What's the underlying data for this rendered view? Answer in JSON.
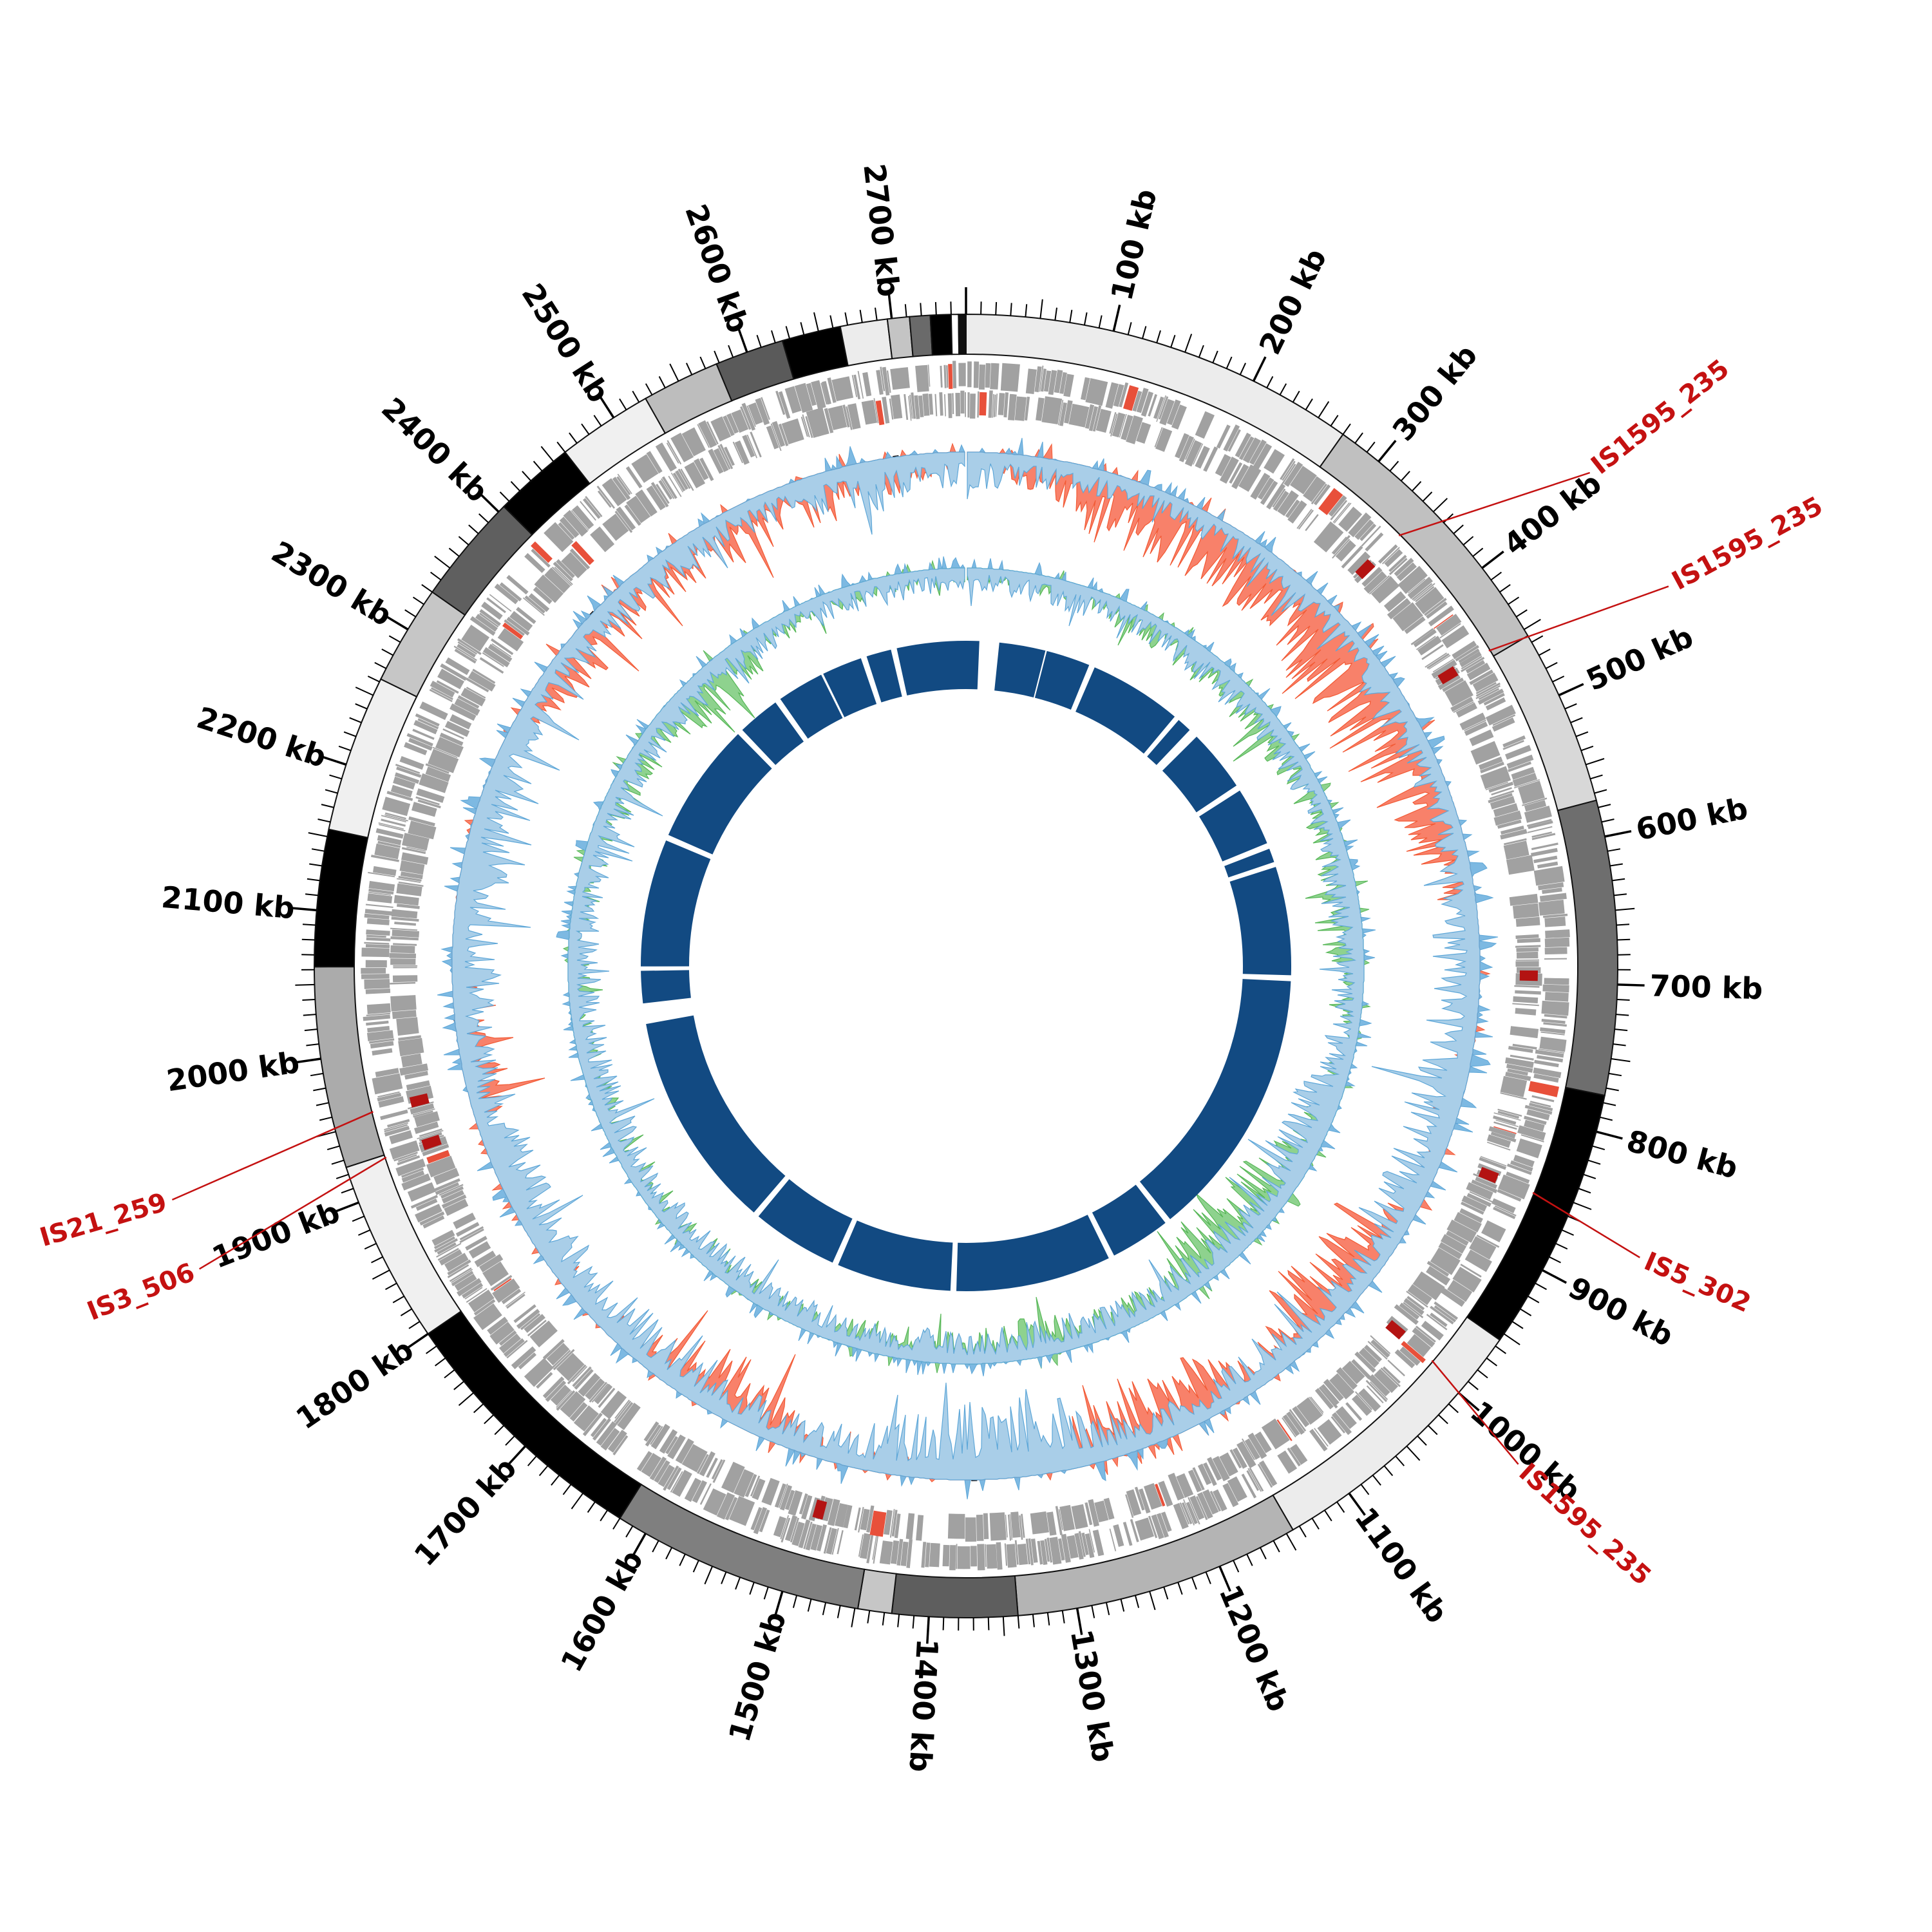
{
  "chart_data": {
    "type": "circular-genome-map",
    "unit": "kb",
    "total_kb": 2750,
    "axis": {
      "minor_tick_kb": 10,
      "mid_tick_kb": 50,
      "major_tick_kb": 100,
      "labels": [
        "100 kb",
        "200 kb",
        "300 kb",
        "400 kb",
        "500 kb",
        "600 kb",
        "700 kb",
        "800 kb",
        "900 kb",
        "1000 kb",
        "1100 kb",
        "1200 kb",
        "1300 kb",
        "1400 kb",
        "1500 kb",
        "1600 kb",
        "1700 kb",
        "1800 kb",
        "1900 kb",
        "2000 kb",
        "2100 kb",
        "2200 kb",
        "2300 kb",
        "2400 kb",
        "2500 kb",
        "2600 kb",
        "2700 kb"
      ]
    },
    "contigs": [
      [
        0,
        270,
        "#ececec"
      ],
      [
        270,
        455,
        "#c0c0c0"
      ],
      [
        455,
        575,
        "#d8d8d8"
      ],
      [
        575,
        775,
        "#6e6e6e"
      ],
      [
        775,
        955,
        "#000000"
      ],
      [
        955,
        1145,
        "#ececec"
      ],
      [
        1145,
        1340,
        "#b4b4b4"
      ],
      [
        1340,
        1425,
        "#5e5e5e"
      ],
      [
        1425,
        1448,
        "#c6c6c6"
      ],
      [
        1448,
        1620,
        "#7f7f7f"
      ],
      [
        1620,
        1800,
        "#000000"
      ],
      [
        1800,
        1925,
        "#f0f0f0"
      ],
      [
        1925,
        2062,
        "#ababab"
      ],
      [
        2062,
        2155,
        "#000000"
      ],
      [
        2155,
        2262,
        "#f0f0f0"
      ],
      [
        2262,
        2330,
        "#c6c6c6"
      ],
      [
        2330,
        2405,
        "#5f5f5f"
      ],
      [
        2405,
        2460,
        "#000000"
      ],
      [
        2460,
        2525,
        "#f0f0f0"
      ],
      [
        2525,
        2578,
        "#bdbdbd"
      ],
      [
        2578,
        2625,
        "#5a5a5a"
      ],
      [
        2625,
        2665,
        "#000000"
      ],
      [
        2665,
        2697,
        "#ececec"
      ],
      [
        2697,
        2712,
        "#c4c4c4"
      ],
      [
        2712,
        2726,
        "#6a6a6a"
      ],
      [
        2726,
        2740,
        "#000000"
      ],
      [
        2740,
        2745,
        "#ffffff"
      ],
      [
        2745,
        2750,
        "#111111"
      ]
    ],
    "is_elements": [
      {
        "label": "IS1595_235",
        "kb": 345,
        "label_offset_deg": 6.5,
        "label_r": 1245
      },
      {
        "label": "IS1595_235",
        "kb": 450,
        "label_offset_deg": 2.7,
        "label_r": 1250
      },
      {
        "label": "IS5_302",
        "kb": 854,
        "label_offset_deg": 1.6,
        "label_r": 1150
      },
      {
        "label": "IS1595_235",
        "kb": 995,
        "label_offset_deg": 1.8,
        "label_r": 1165
      },
      {
        "label": "IS3_506",
        "kb": 1923,
        "label_offset_deg": -3.3,
        "label_r": 1290
      },
      {
        "label": "IS21_259",
        "kb": 1957,
        "label_offset_deg": -2.6,
        "label_r": 1295
      }
    ],
    "is_site_marks_kb": [
      345,
      450,
      695,
      854,
      995,
      1490,
      1923,
      1957
    ],
    "black_marks_kb": [
      66,
      1368,
      2018,
      2393,
      2690
    ],
    "alignment_segments": [
      [
        0,
        18
      ],
      [
        45,
        108
      ],
      [
        110,
        170
      ],
      [
        178,
        305
      ],
      [
        312,
        332
      ],
      [
        345,
        430
      ],
      [
        438,
        518
      ],
      [
        526,
        545
      ],
      [
        552,
        700
      ],
      [
        708,
        1078
      ],
      [
        1086,
        1168
      ],
      [
        1176,
        1388
      ],
      [
        1396,
        1552
      ],
      [
        1560,
        1678
      ],
      [
        1686,
        1984
      ],
      [
        2012,
        2056
      ],
      [
        2062,
        2236
      ],
      [
        2244,
        2410
      ],
      [
        2418,
        2476
      ],
      [
        2484,
        2548
      ],
      [
        2551,
        2606
      ],
      [
        2614,
        2648
      ],
      [
        2656,
        2750
      ]
    ],
    "tracks": {
      "gc_content": {
        "orange_envelope": [
          0.15,
          0.3,
          0.75,
          0.75,
          0.7,
          0.75,
          0.8,
          0.9,
          0.95,
          0.95,
          0.85,
          0.8,
          0.5,
          0.15,
          0.15,
          0.15,
          0.2,
          0.2,
          0.25,
          0.7,
          0.8,
          0.8,
          0.3,
          0.7,
          0.8,
          0.6,
          0.2,
          0.15,
          0.15,
          0.2,
          0.2,
          0.6,
          0.7,
          0.6,
          0.2,
          0.15,
          0.15,
          0.2,
          0.2,
          0.5,
          0.4,
          0.15,
          0.15,
          0.15,
          0.2,
          0.2,
          0.3,
          0.6,
          0.4,
          0.5,
          0.6,
          0.6,
          0.55,
          0.5,
          0.4
        ],
        "blue_envelope": [
          0.45,
          0.4,
          0.3,
          0.25,
          0.25,
          0.3,
          0.3,
          0.3,
          0.35,
          0.4,
          0.35,
          0.3,
          0.35,
          0.5,
          0.5,
          0.55,
          0.6,
          0.55,
          0.5,
          0.35,
          0.4,
          0.4,
          0.5,
          0.35,
          0.35,
          0.5,
          1.0,
          0.95,
          0.8,
          0.5,
          0.5,
          0.4,
          0.4,
          0.4,
          0.5,
          0.5,
          0.45,
          0.5,
          0.5,
          0.35,
          0.4,
          0.5,
          0.55,
          0.5,
          0.45,
          0.45,
          0.4,
          0.3,
          0.4,
          0.4,
          0.35,
          0.3,
          0.4,
          0.6,
          0.5
        ]
      },
      "gc_skew": {
        "green_envelope": [
          0.2,
          0.25,
          0.3,
          0.3,
          0.35,
          0.45,
          0.5,
          0.5,
          0.5,
          0.45,
          0.45,
          0.4,
          0.7,
          0.8,
          0.3,
          0.25,
          0.3,
          0.4,
          0.6,
          0.8,
          0.9,
          1.0,
          0.8,
          0.5,
          0.4,
          0.5,
          0.6,
          0.5,
          0.45,
          0.5,
          0.4,
          0.3,
          0.3,
          0.35,
          0.3,
          0.25,
          0.25,
          0.3,
          0.35,
          0.35,
          0.3,
          0.3,
          0.25,
          0.25,
          0.3,
          0.4,
          0.5,
          0.5,
          0.7,
          0.8,
          0.5,
          0.3,
          0.3,
          0.25,
          0.25
        ],
        "blue_envelope": [
          0.35,
          0.35,
          0.4,
          0.4,
          0.4,
          0.4,
          0.45,
          0.45,
          0.4,
          0.4,
          0.4,
          0.45,
          0.5,
          0.5,
          0.45,
          0.4,
          0.5,
          0.7,
          0.75,
          0.6,
          0.5,
          0.5,
          0.5,
          0.45,
          0.45,
          0.5,
          0.5,
          0.5,
          0.45,
          0.5,
          0.45,
          0.45,
          0.4,
          0.45,
          0.45,
          0.4,
          0.4,
          0.45,
          0.5,
          0.45,
          0.4,
          0.45,
          0.4,
          0.4,
          0.45,
          0.45,
          0.45,
          0.4,
          0.45,
          0.45,
          0.4,
          0.35,
          0.4,
          0.4,
          0.35
        ]
      }
    },
    "gene_track": {
      "seed_outer": 11,
      "seed_inner": 22,
      "red_fraction": 0.018
    },
    "seeds": {
      "gc_content": 33,
      "gc_skew": 44
    },
    "colors": {
      "contig_outline": "#111111",
      "tick": "#000000",
      "scale_label": "#000000",
      "gene": "#a1a1a1",
      "gene_red": "#e8503a",
      "is_mark": "#b31312",
      "is_label": "#c41111",
      "leader_line": "#c41111",
      "track_orange": "#f8816a",
      "track_orange_stroke": "#f25a35",
      "track_green": "#8ed28e",
      "track_green_stroke": "#57b757",
      "track_blue": "#a9cee8",
      "track_blue_stroke": "#5ea7d8",
      "track_spike_blue": "#7db9e2",
      "alignment_ring": "#124a82",
      "black_mark": "#111111",
      "background": "#ffffff"
    }
  }
}
